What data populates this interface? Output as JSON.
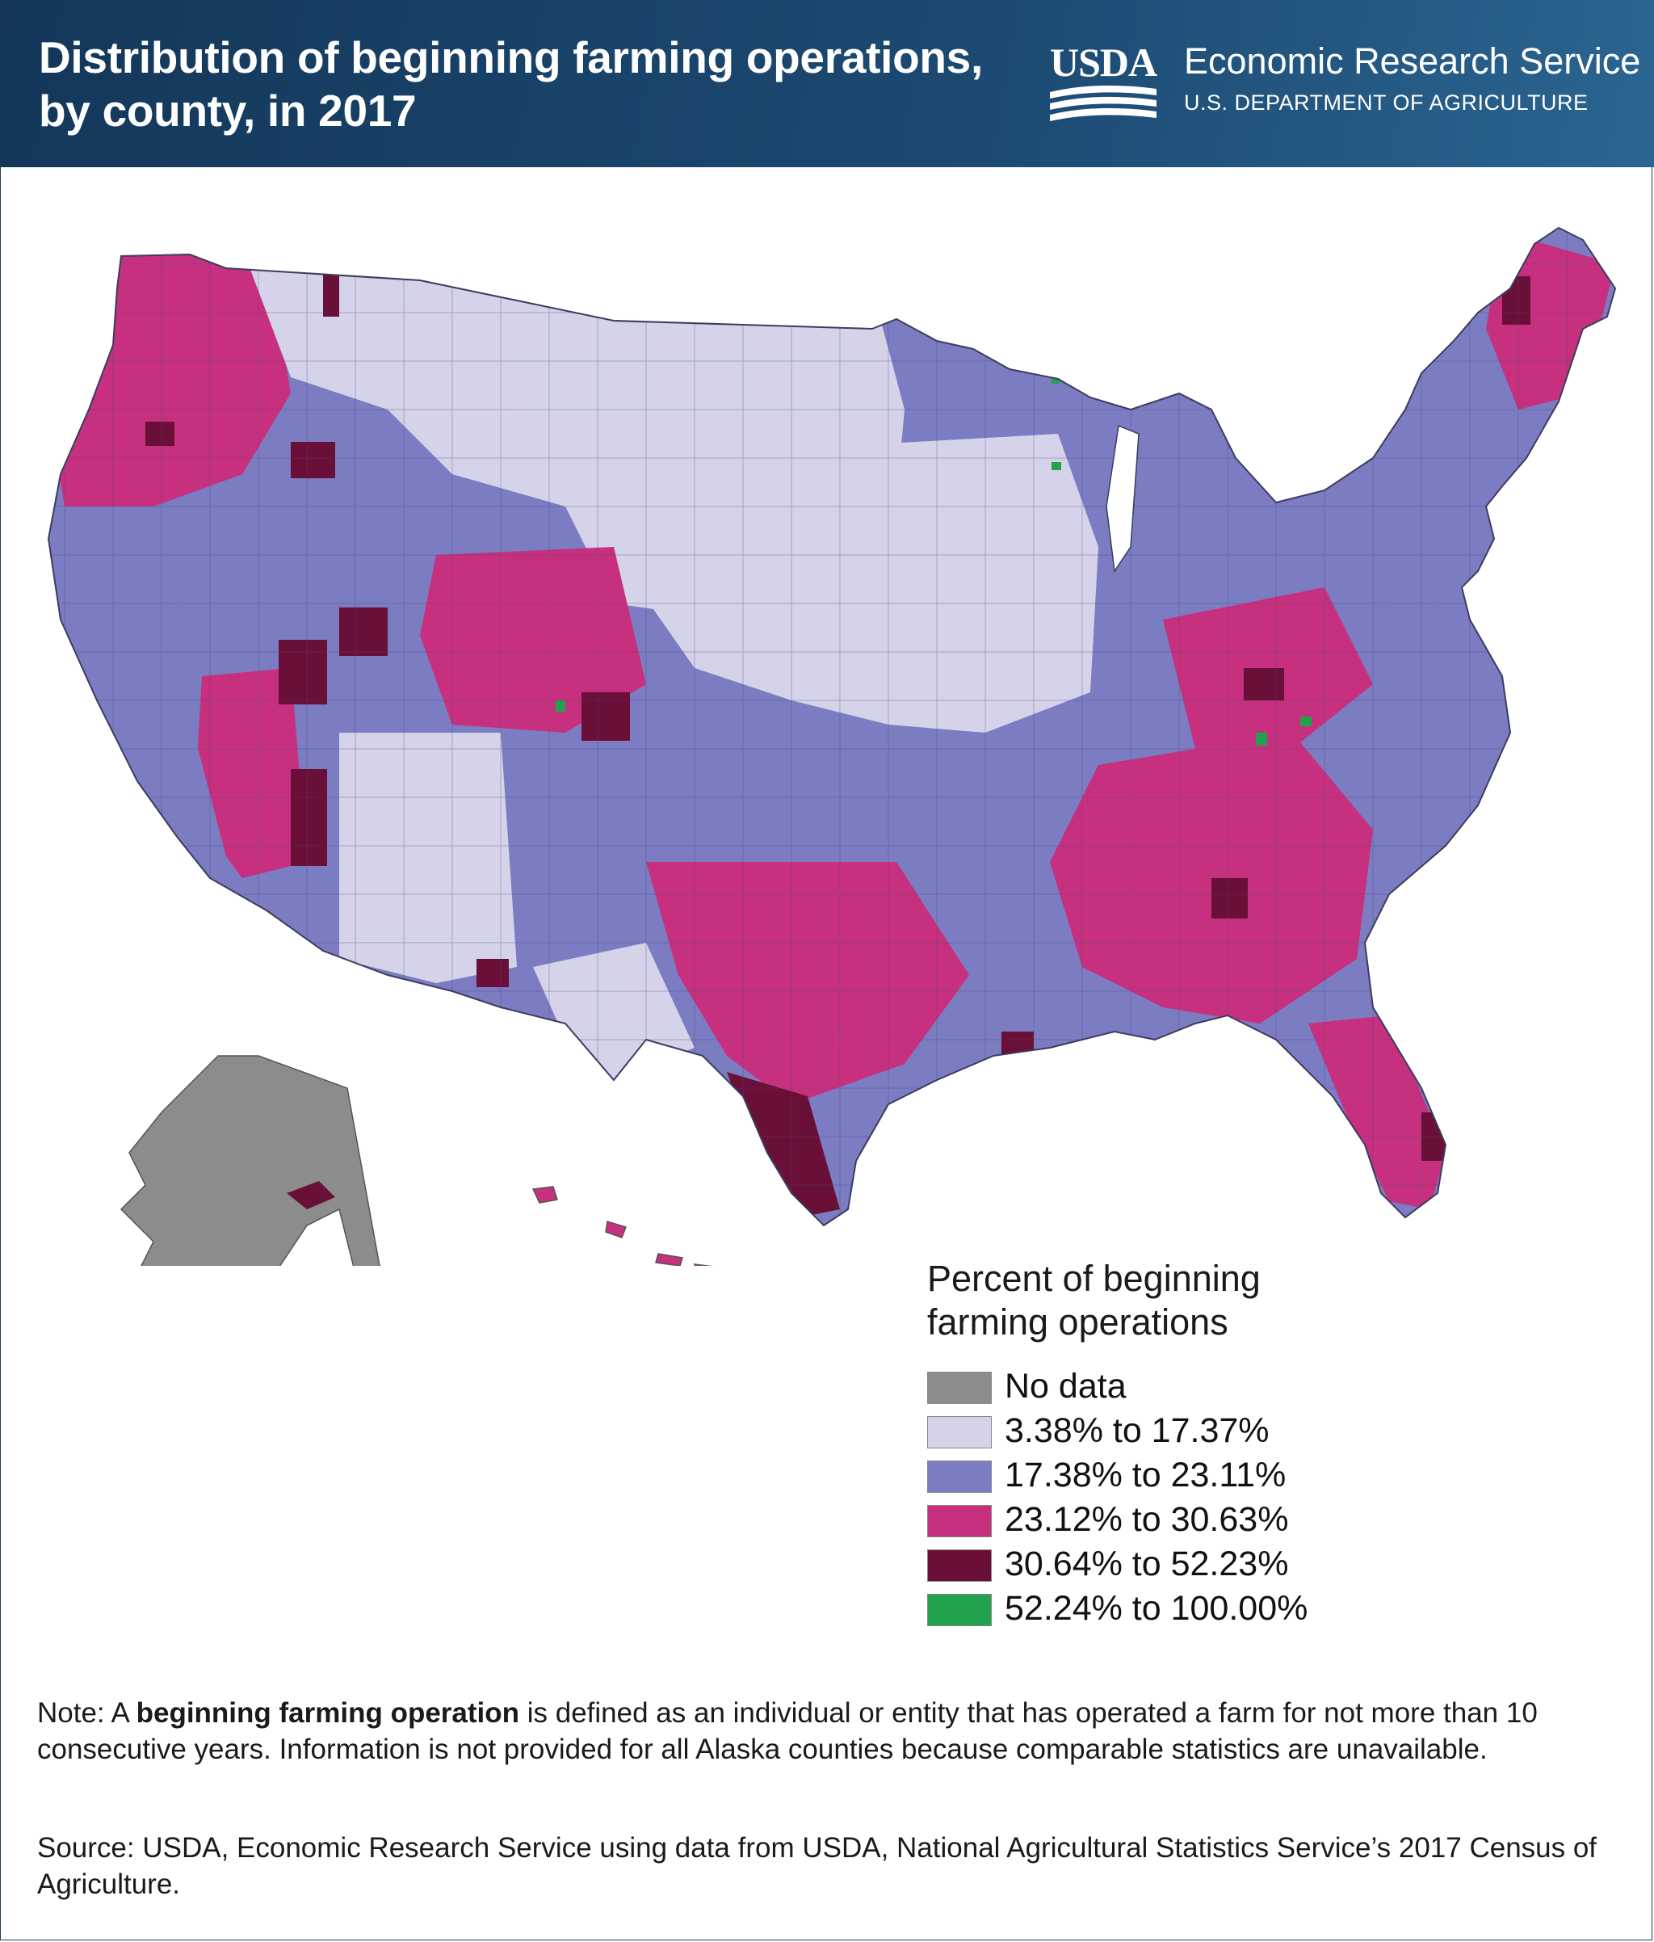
{
  "header": {
    "title_line1": "Distribution of beginning farming operations,",
    "title_line2": "by county, in 2017",
    "agency_logo": "USDA",
    "agency_name": "Economic Research Service",
    "department": "U.S. DEPARTMENT OF AGRICULTURE"
  },
  "legend": {
    "title_line1": "Percent of beginning",
    "title_line2": "farming operations",
    "items": [
      {
        "label": "No data",
        "color": "#8c8c8c"
      },
      {
        "label": "3.38% to 17.37%",
        "color": "#d5d3ea"
      },
      {
        "label": "17.38% to 23.11%",
        "color": "#7b7cc2"
      },
      {
        "label": "23.12% to 30.63%",
        "color": "#c7307e"
      },
      {
        "label": "30.64% to 52.23%",
        "color": "#6a0f38"
      },
      {
        "label": "52.24% to 100.00%",
        "color": "#22a24c"
      }
    ]
  },
  "note": {
    "prefix": "Note: A ",
    "term": "beginning farming operation",
    "text": " is defined as an individual or entity that has operated a farm for not more than 10 consecutive years. Information is not provided for all Alaska counties because comparable statistics are unavailable."
  },
  "source": "Source: USDA, Economic Research Service using data from USDA, National Agricultural Statistics Service’s 2017 Census of Agriculture.",
  "map_regions": [
    {
      "name": "pacific-northwest",
      "category": "23.12% to 30.63%"
    },
    {
      "name": "northern-plains",
      "category": "3.38% to 17.37%"
    },
    {
      "name": "corn-belt",
      "category": "3.38% to 17.37%"
    },
    {
      "name": "mountain-west",
      "category": "17.38% to 23.11%"
    },
    {
      "name": "southeast",
      "category": "23.12% to 30.63%"
    },
    {
      "name": "south-texas",
      "category": "30.64% to 52.23%"
    },
    {
      "name": "northeast",
      "category": "17.38% to 23.11%"
    },
    {
      "name": "florida",
      "category": "23.12% to 30.63%"
    },
    {
      "name": "alaska",
      "category": "No data"
    },
    {
      "name": "hawaii",
      "category": "23.12% to 30.63%"
    }
  ]
}
